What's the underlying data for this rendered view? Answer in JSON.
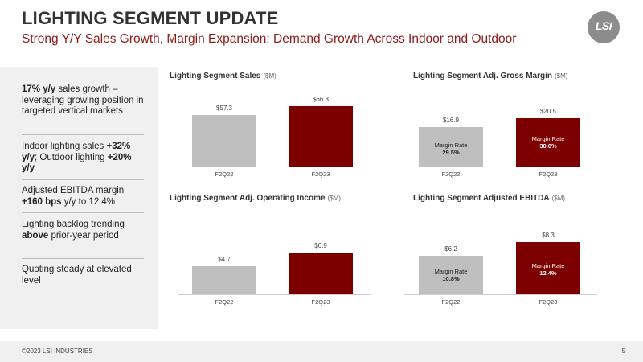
{
  "header": {
    "title": "LIGHTING SEGMENT UPDATE",
    "subtitle": "Strong Y/Y Sales Growth, Margin Expansion; Demand Growth Across Indoor and Outdoor",
    "logo_text": "LSI"
  },
  "sidebar": {
    "points": [
      {
        "b1": "17% y/y",
        "t1": " sales growth – leveraging growing position in targeted vertical markets"
      },
      {
        "t1": "Indoor lighting sales ",
        "b1": "+32% y/y",
        "t2": "; Outdoor lighting ",
        "b2": "+20% y/y"
      },
      {
        "t1": "Adjusted EBITDA margin ",
        "b1": "+160 bps",
        "t2": " y/y to 12.4%"
      },
      {
        "t1": "Lighting backlog trending ",
        "b1": "above",
        "t2": " prior-year period"
      },
      {
        "t1": "Quoting steady at elevated level"
      }
    ]
  },
  "chart_data": [
    {
      "type": "bar",
      "title": "Lighting Segment Sales",
      "unit": "($M)",
      "categories": [
        "F2Q22",
        "F2Q23"
      ],
      "values": [
        57.3,
        66.8
      ],
      "value_labels": [
        "$57.3",
        "$66.8"
      ],
      "colors": [
        "#bfbfbf",
        "#7d0000"
      ]
    },
    {
      "type": "bar",
      "title": "Lighting Segment Adj. Gross Margin",
      "unit": "($M)",
      "categories": [
        "F2Q22",
        "F2Q23"
      ],
      "values": [
        16.9,
        20.5
      ],
      "value_labels": [
        "$16.9",
        "$20.5"
      ],
      "bar_annotations": [
        {
          "label": "Margin Rate",
          "rate": "29.5%"
        },
        {
          "label": "Margin Rate",
          "rate": "30.6%"
        }
      ],
      "colors": [
        "#bfbfbf",
        "#7d0000"
      ]
    },
    {
      "type": "bar",
      "title": "Lighting Segment Adj. Operating Income",
      "unit": "($M)",
      "categories": [
        "F2Q22",
        "F2Q23"
      ],
      "values": [
        4.7,
        6.9
      ],
      "value_labels": [
        "$4.7",
        "$6.9"
      ],
      "colors": [
        "#bfbfbf",
        "#7d0000"
      ]
    },
    {
      "type": "bar",
      "title": "Lighting Segment Adjusted EBITDA",
      "unit": "($M)",
      "categories": [
        "F2Q22",
        "F2Q23"
      ],
      "values": [
        6.2,
        8.3
      ],
      "value_labels": [
        "$6.2",
        "$8.3"
      ],
      "bar_annotations": [
        {
          "label": "Margin Rate",
          "rate": "10.8%"
        },
        {
          "label": "Margin Rate",
          "rate": "12.4%"
        }
      ],
      "colors": [
        "#bfbfbf",
        "#7d0000"
      ]
    }
  ],
  "footer": {
    "copyright": "©2023 LSI INDUSTRIES",
    "page_number": "5"
  }
}
